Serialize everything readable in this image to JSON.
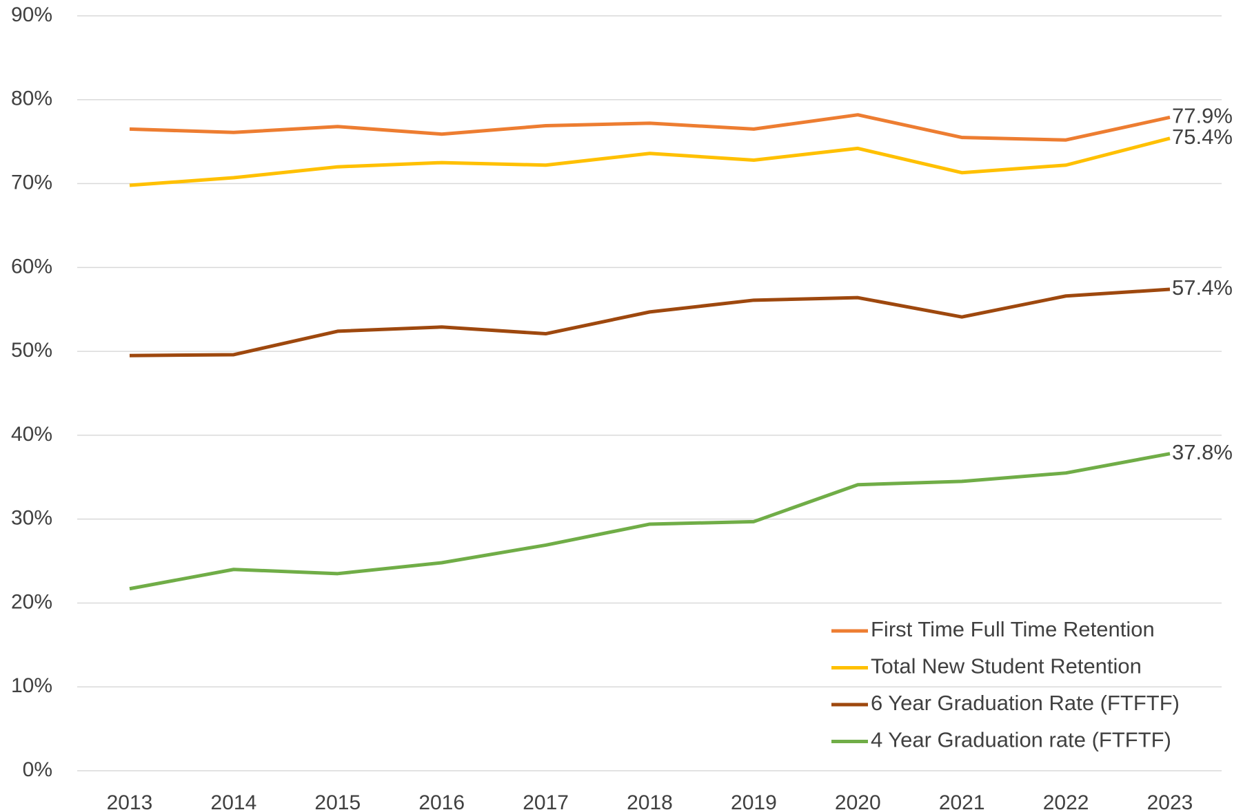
{
  "chart_data": {
    "type": "line",
    "categories": [
      "2013",
      "2014",
      "2015",
      "2016",
      "2017",
      "2018",
      "2019",
      "2020",
      "2021",
      "2022",
      "2023"
    ],
    "series": [
      {
        "name": "First Time Full Time Retention",
        "color": "#ED7D31",
        "values": [
          76.5,
          76.1,
          76.8,
          75.9,
          76.9,
          77.2,
          76.5,
          78.2,
          75.5,
          75.2,
          77.9
        ],
        "value_labels": [
          null,
          null,
          null,
          null,
          null,
          null,
          null,
          null,
          null,
          null,
          "77.9%"
        ]
      },
      {
        "name": "Total New Student Retention",
        "color": "#FFC000",
        "values": [
          69.8,
          70.7,
          72.0,
          72.5,
          72.2,
          73.6,
          72.8,
          74.2,
          71.3,
          72.2,
          75.4
        ],
        "value_labels": [
          null,
          null,
          null,
          null,
          null,
          null,
          null,
          null,
          null,
          null,
          "75.4%"
        ]
      },
      {
        "name": "6 Year Graduation Rate (FTFTF)",
        "color": "#9E480E",
        "values": [
          49.5,
          49.6,
          52.4,
          52.9,
          52.1,
          54.7,
          56.1,
          56.4,
          54.1,
          56.6,
          57.4
        ],
        "value_labels": [
          null,
          null,
          null,
          null,
          null,
          null,
          null,
          null,
          null,
          null,
          "57.4%"
        ]
      },
      {
        "name": "4 Year Graduation rate (FTFTF)",
        "color": "#70AD47",
        "values": [
          21.7,
          24.0,
          23.5,
          24.8,
          26.9,
          29.4,
          29.7,
          34.1,
          34.5,
          35.5,
          37.8
        ],
        "value_labels": [
          null,
          null,
          null,
          null,
          null,
          null,
          null,
          null,
          null,
          null,
          "37.8%"
        ]
      }
    ],
    "ylim": [
      0,
      90
    ],
    "yticks": [
      {
        "value": 0,
        "label": "0%"
      },
      {
        "value": 10,
        "label": "10%"
      },
      {
        "value": 20,
        "label": "20%"
      },
      {
        "value": 30,
        "label": "30%"
      },
      {
        "value": 40,
        "label": "40%"
      },
      {
        "value": 50,
        "label": "50%"
      },
      {
        "value": 60,
        "label": "60%"
      },
      {
        "value": 70,
        "label": "70%"
      },
      {
        "value": 80,
        "label": "80%"
      },
      {
        "value": 90,
        "label": "90%"
      }
    ],
    "grid": true,
    "legend": "lower right"
  }
}
